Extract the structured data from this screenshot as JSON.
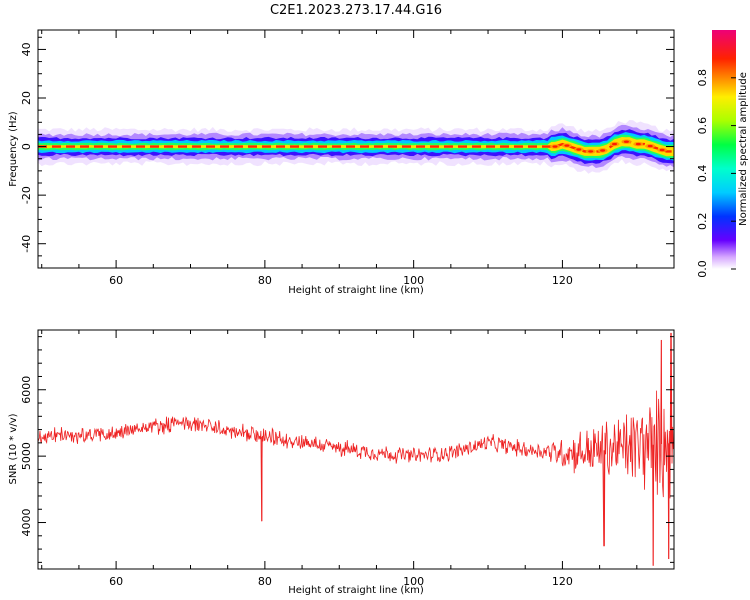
{
  "chart_data": [
    {
      "type": "heatmap",
      "title": "C2E1.2023.273.17.44.G16",
      "xlabel": "Height of straight line (km)",
      "ylabel": "Frequency (Hz)",
      "xlim": [
        49.5,
        135
      ],
      "ylim": [
        -50,
        48
      ],
      "xticks": [
        60,
        80,
        100,
        120
      ],
      "yticks": [
        40,
        20,
        0,
        -20,
        -40
      ],
      "colorbar": {
        "label": "Normalized spectral amplitude",
        "range": [
          0,
          1
        ],
        "ticks": [
          "0.0",
          "0.2",
          "0.4",
          "0.6",
          "0.8"
        ]
      },
      "ridge": {
        "x": [
          49.5,
          60,
          70,
          80,
          90,
          100,
          110,
          117.5,
          119,
          120,
          121,
          122,
          123,
          124,
          125,
          126,
          127,
          128,
          129,
          130,
          131,
          132,
          133,
          134,
          135
        ],
        "y": [
          0,
          0,
          0,
          0,
          0,
          0,
          0,
          0,
          0,
          1,
          0,
          -1,
          -2,
          -2,
          -2,
          -1,
          1,
          2,
          2,
          1,
          1,
          0,
          -1,
          -2,
          -2
        ]
      }
    },
    {
      "type": "line",
      "xlabel": "Height of straight line (km)",
      "ylabel": "SNR (10 * v/v)",
      "xlim": [
        49.5,
        135
      ],
      "ylim": [
        3300,
        6900
      ],
      "xticks": [
        60,
        80,
        100,
        120
      ],
      "yticks": [
        4000,
        5000,
        6000
      ],
      "color": "#ee2222",
      "trend": {
        "x": [
          49.5,
          55,
          60,
          65,
          70,
          75,
          80,
          85,
          90,
          95,
          100,
          105,
          110,
          115,
          120,
          125,
          130,
          135
        ],
        "y": [
          5300,
          5300,
          5350,
          5450,
          5500,
          5380,
          5280,
          5220,
          5120,
          5050,
          5000,
          5050,
          5200,
          5100,
          5050,
          5080,
          5150,
          5200
        ]
      },
      "spikes": [
        {
          "x": 79.6,
          "y": 4020
        },
        {
          "x": 125.6,
          "y": 3650
        },
        {
          "x": 132.2,
          "y": 3350
        },
        {
          "x": 133.3,
          "y": 6750
        },
        {
          "x": 134.3,
          "y": 3450
        },
        {
          "x": 134.6,
          "y": 6850
        }
      ]
    }
  ]
}
